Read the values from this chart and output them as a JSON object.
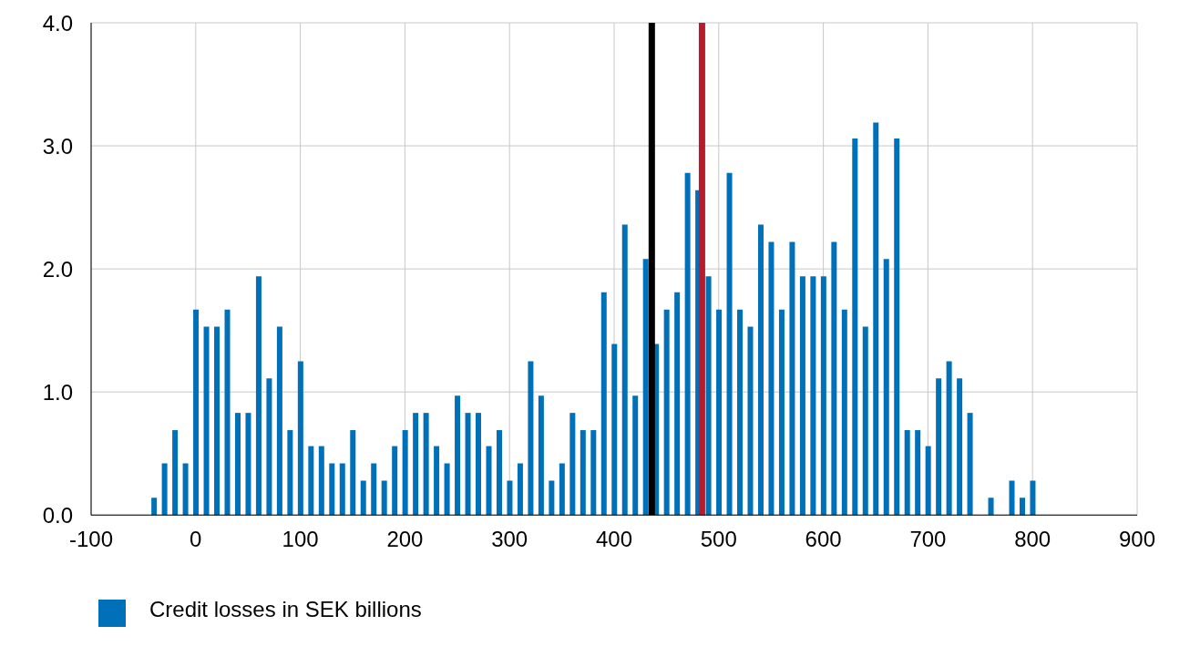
{
  "chart_data": {
    "type": "bar",
    "x": [
      -40,
      -30,
      -20,
      -10,
      0,
      10,
      20,
      30,
      40,
      50,
      60,
      70,
      80,
      90,
      100,
      110,
      120,
      130,
      140,
      150,
      160,
      170,
      180,
      190,
      200,
      210,
      220,
      230,
      240,
      250,
      260,
      270,
      280,
      290,
      300,
      310,
      320,
      330,
      340,
      350,
      360,
      370,
      380,
      390,
      400,
      410,
      420,
      430,
      440,
      450,
      460,
      470,
      480,
      490,
      500,
      510,
      520,
      530,
      540,
      550,
      560,
      570,
      580,
      590,
      600,
      610,
      620,
      630,
      640,
      650,
      660,
      670,
      680,
      690,
      700,
      710,
      720,
      730,
      740,
      750,
      760,
      770,
      780,
      790,
      800
    ],
    "series": [
      {
        "name": "Credit losses in SEK billions",
        "color": "#0070b8",
        "values": [
          0.14,
          0.42,
          0.69,
          0.42,
          1.67,
          1.53,
          1.53,
          1.67,
          0.83,
          0.83,
          1.94,
          1.11,
          1.53,
          0.69,
          1.25,
          0.56,
          0.56,
          0.42,
          0.42,
          0.69,
          0.28,
          0.42,
          0.28,
          0.56,
          0.69,
          0.83,
          0.83,
          0.56,
          0.42,
          0.97,
          0.83,
          0.83,
          0.56,
          0.69,
          0.28,
          0.42,
          1.25,
          0.97,
          0.28,
          0.42,
          0.83,
          0.69,
          0.69,
          1.81,
          1.39,
          2.36,
          0.97,
          2.08,
          1.39,
          1.67,
          1.81,
          2.78,
          2.64,
          1.94,
          1.67,
          2.78,
          1.67,
          1.53,
          2.36,
          2.22,
          1.67,
          2.22,
          1.94,
          1.94,
          1.94,
          2.22,
          1.67,
          3.06,
          1.53,
          3.19,
          2.08,
          3.06,
          0.69,
          0.69,
          0.56,
          1.11,
          1.25,
          1.11,
          0.83,
          0,
          0.14,
          0,
          0.28,
          0.14,
          0.28
        ]
      }
    ],
    "xlim": [
      -100,
      900
    ],
    "xticks": [
      -100,
      0,
      100,
      200,
      300,
      400,
      500,
      600,
      700,
      800,
      900
    ],
    "ylim": [
      0,
      4
    ],
    "yticks": [
      {
        "value": 0,
        "label": "0.0"
      },
      {
        "value": 1,
        "label": "1.0"
      },
      {
        "value": 2,
        "label": "2.0"
      },
      {
        "value": 3,
        "label": "3.0"
      },
      {
        "value": 4,
        "label": "4.0"
      }
    ],
    "ref_lines": [
      {
        "axis": "x",
        "value": 436,
        "color": "#000000"
      },
      {
        "axis": "x",
        "value": 484,
        "color": "#b81c2c"
      }
    ],
    "grid": true,
    "legend": "bottom left"
  }
}
